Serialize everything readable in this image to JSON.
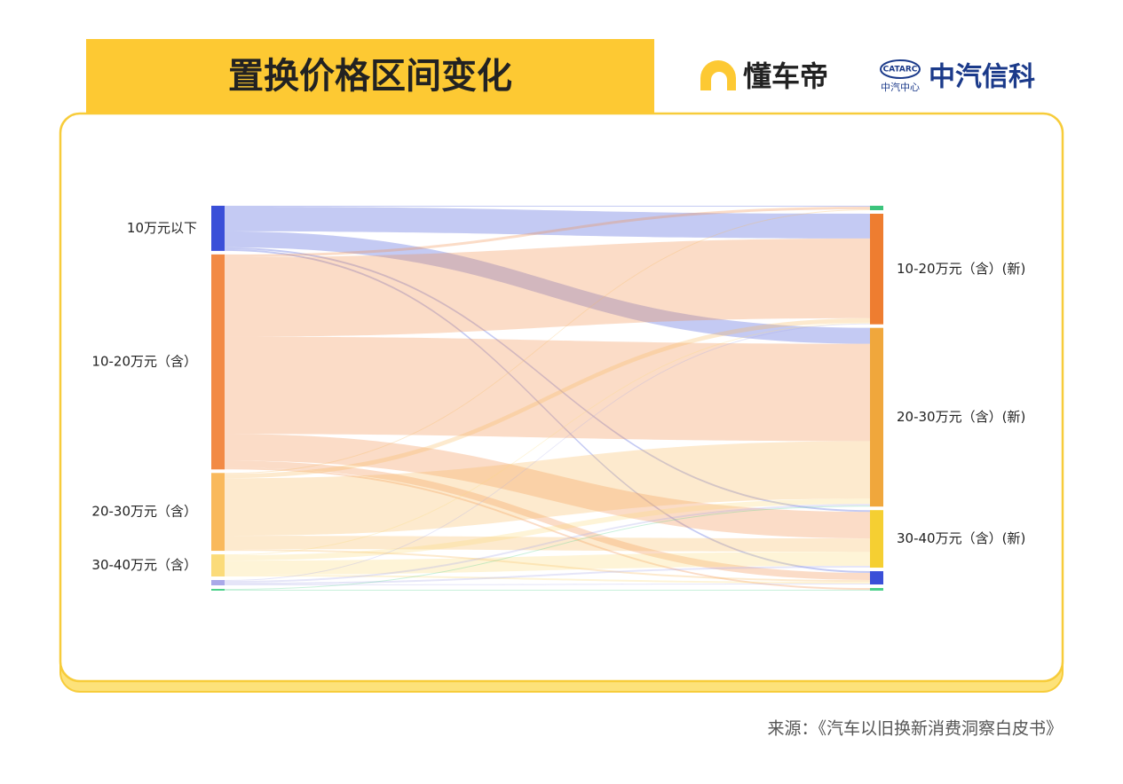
{
  "header": {
    "brand1": "懂车帝",
    "brand2": "中汽信科",
    "brand2_mark": "CATARC",
    "brand2_sub": "中汽中心"
  },
  "footer": {
    "source": "来源：《汽车以旧换新消费洞察白皮书》"
  },
  "chart_data": {
    "type": "sankey",
    "title": "置换价格区间变化",
    "sources": [
      {
        "name": "10万元以下",
        "color": "#3a4fd8",
        "values": [
          1,
          28,
          18,
          2,
          2,
          0
        ]
      },
      {
        "name": "10-20万元（含）",
        "color": "#f28a45",
        "values": [
          3,
          90,
          110,
          30,
          8,
          2
        ]
      },
      {
        "name": "20-30万元（含）",
        "color": "#f9b95c",
        "values": [
          1,
          5,
          65,
          15,
          2,
          0
        ]
      },
      {
        "name": "30-40万元（含）",
        "color": "#fbdb7a",
        "values": [
          0,
          1,
          6,
          16,
          2,
          0
        ]
      },
      {
        "name": null,
        "color": "#a9a9e8",
        "values": [
          0,
          1,
          2,
          2,
          1,
          0
        ]
      },
      {
        "name": null,
        "color": "#4cd08a",
        "values": [
          0,
          0,
          1,
          0,
          0,
          1
        ]
      }
    ],
    "targets": [
      {
        "name": null,
        "color": "#3cc47c"
      },
      {
        "name": "10-20万元（含）(新)",
        "color": "#ee7d30"
      },
      {
        "name": "20-30万元（含）(新)",
        "color": "#f0a73c"
      },
      {
        "name": "30-40万元（含）(新)",
        "color": "#f5cf32"
      },
      {
        "name": null,
        "color": "#3a4fd8"
      },
      {
        "name": null,
        "color": "#4cd08a"
      }
    ]
  }
}
